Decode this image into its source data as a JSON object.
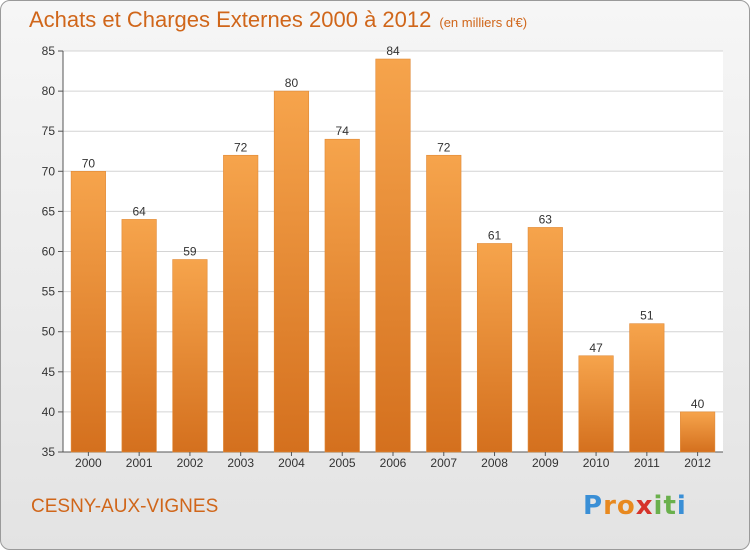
{
  "chart_data": {
    "type": "bar",
    "title": "Achats et Charges Externes 2000 à 2012",
    "subtitle": "(en milliers d'€)",
    "categories": [
      "2000",
      "2001",
      "2002",
      "2003",
      "2004",
      "2005",
      "2006",
      "2007",
      "2008",
      "2009",
      "2010",
      "2011",
      "2012"
    ],
    "values": [
      70,
      64,
      59,
      72,
      80,
      74,
      84,
      72,
      61,
      63,
      47,
      51,
      40
    ],
    "ylim": [
      35,
      85
    ],
    "yticks": [
      35,
      40,
      45,
      50,
      55,
      60,
      65,
      70,
      75,
      80,
      85
    ],
    "grid": true,
    "bar_color_top": "#f6a44c",
    "bar_color_bottom": "#d4701e"
  },
  "commune": "CESNY-AUX-VIGNES",
  "logo": {
    "letters": [
      "P",
      "r",
      "o",
      "x",
      "i",
      "t",
      "i"
    ],
    "colors": [
      "#3a8fd6",
      "#e8891f",
      "#e8891f",
      "#d6332a",
      "#6ab04c",
      "#6ab04c",
      "#3a8fd6"
    ]
  }
}
